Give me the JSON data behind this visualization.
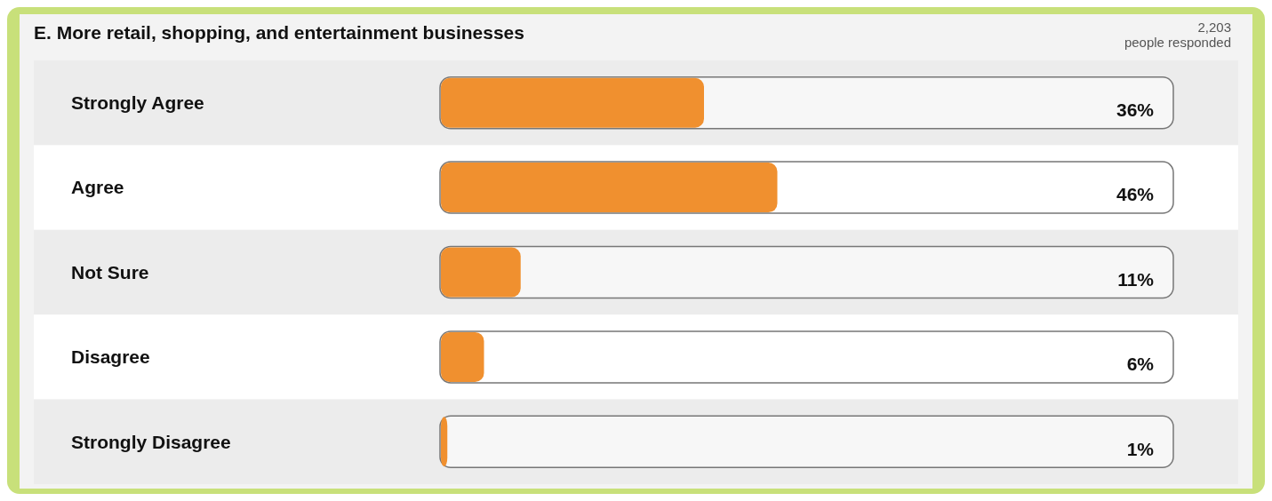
{
  "chart_data": {
    "type": "bar",
    "orientation": "horizontal",
    "title": "E. More retail, shopping, and entertainment businesses",
    "annotations": [
      "2,203 people responded"
    ],
    "categories": [
      "Strongly Agree",
      "Agree",
      "Not Sure",
      "Disagree",
      "Strongly Disagree"
    ],
    "values": [
      36,
      46,
      11,
      6,
      1
    ],
    "value_labels": [
      "36%",
      "46%",
      "11%",
      "6%",
      "1%"
    ],
    "color": "#f0902f",
    "tick_labels": "y"
  }
}
